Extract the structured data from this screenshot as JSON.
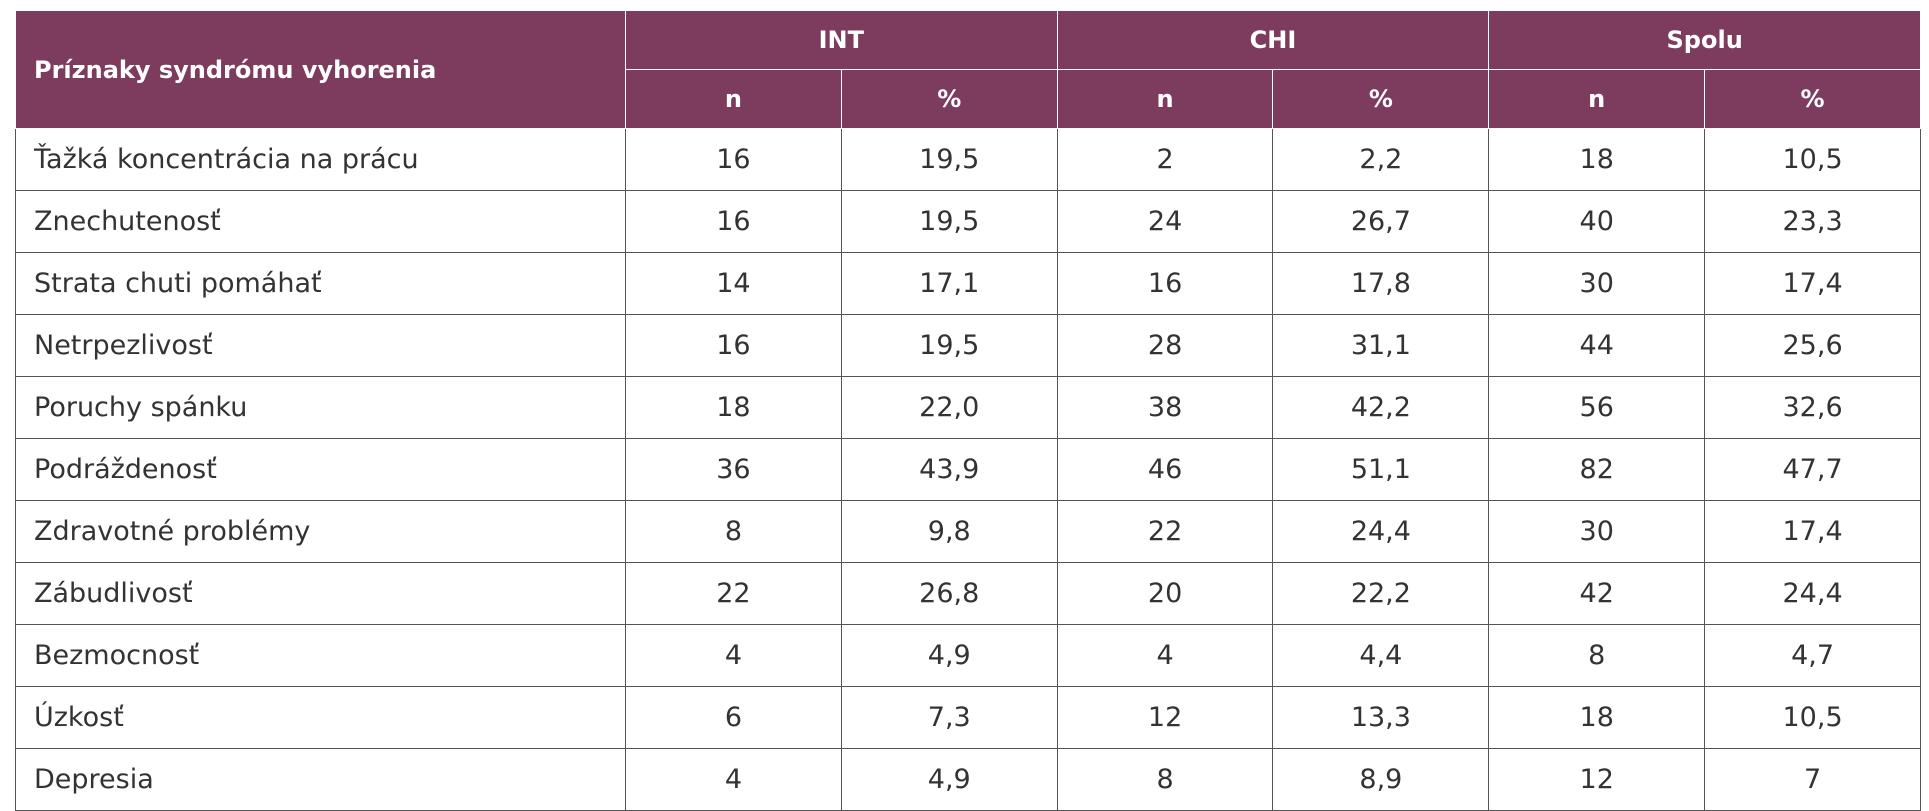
{
  "header": {
    "title": "Príznaky syndrómu vyhorenia",
    "groups": [
      "INT",
      "CHI",
      "Spolu"
    ],
    "subcols": [
      "n",
      "%",
      "n",
      "%",
      "n",
      "%"
    ]
  },
  "table": {
    "rows": [
      [
        "Ťažká koncentrácia na prácu",
        "16",
        "19,5",
        "2",
        "2,2",
        "18",
        "10,5"
      ],
      [
        "Znechutenosť",
        "16",
        "19,5",
        "24",
        "26,7",
        "40",
        "23,3"
      ],
      [
        "Strata chuti pomáhať",
        "14",
        "17,1",
        "16",
        "17,8",
        "30",
        "17,4"
      ],
      [
        "Netrpezlivosť",
        "16",
        "19,5",
        "28",
        "31,1",
        "44",
        "25,6"
      ],
      [
        "Poruchy spánku",
        "18",
        "22,0",
        "38",
        "42,2",
        "56",
        "32,6"
      ],
      [
        "Podráždenosť",
        "36",
        "43,9",
        "46",
        "51,1",
        "82",
        "47,7"
      ],
      [
        "Zdravotné problémy",
        "8",
        "9,8",
        "22",
        "24,4",
        "30",
        "17,4"
      ],
      [
        "Zábudlivosť",
        "22",
        "26,8",
        "20",
        "22,2",
        "42",
        "24,4"
      ],
      [
        "Bezmocnosť",
        "4",
        "4,9",
        "4",
        "4,4",
        "8",
        "4,7"
      ],
      [
        "Úzkosť",
        "6",
        "7,3",
        "12",
        "13,3",
        "18",
        "10,5"
      ],
      [
        "Depresia",
        "4",
        "4,9",
        "8",
        "8,9",
        "12",
        "7"
      ]
    ]
  }
}
